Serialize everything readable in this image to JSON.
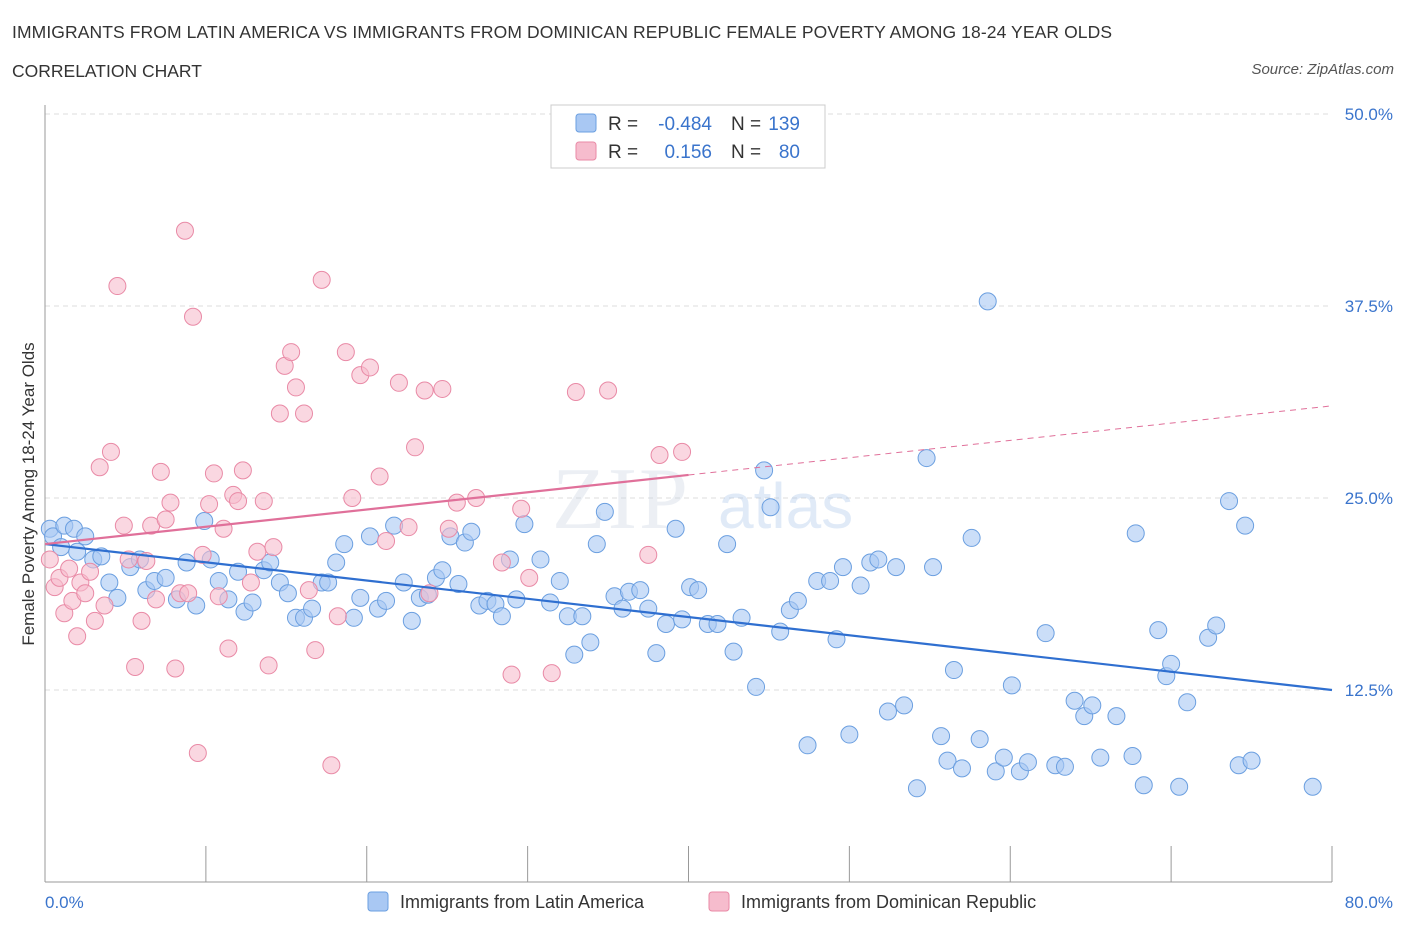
{
  "title": "IMMIGRANTS FROM LATIN AMERICA VS IMMIGRANTS FROM DOMINICAN REPUBLIC FEMALE POVERTY AMONG 18-24 YEAR OLDS",
  "subtitle": "CORRELATION CHART",
  "source": "Source: ZipAtlas.com",
  "watermark": {
    "zip": "ZIP",
    "atlas": "atlas"
  },
  "colors": {
    "blue_fill": "#a9c8f3",
    "blue_stroke": "#6b9fe0",
    "blue_line": "#2f6fd0",
    "pink_fill": "#f6bccd",
    "pink_stroke": "#e98aa6",
    "pink_line": "#e0709a",
    "axis_label_blue": "#3a74cc",
    "grid": "#dddddd"
  },
  "legend_stats": [
    {
      "r_label": "R =",
      "r_value": "-0.484",
      "n_label": "N =",
      "n_value": "139"
    },
    {
      "r_label": "R =",
      "r_value": "0.156",
      "n_label": "N =",
      "n_value": "80"
    }
  ],
  "chart_data": {
    "type": "scatter",
    "title": "IMMIGRANTS FROM LATIN AMERICA VS IMMIGRANTS FROM DOMINICAN REPUBLIC FEMALE POVERTY AMONG 18-24 YEAR OLDS",
    "xlabel": "",
    "ylabel": "Female Poverty Among 18-24 Year Olds",
    "xlim": [
      0,
      80
    ],
    "ylim": [
      0,
      50
    ],
    "x_tick_labels": [
      "0.0%",
      "80.0%"
    ],
    "y_tick_labels": [
      "12.5%",
      "25.0%",
      "37.5%",
      "50.0%"
    ],
    "y_ticks": [
      12.5,
      25.0,
      37.5,
      50.0
    ],
    "legend": [
      "Immigrants from Latin America",
      "Immigrants from Dominican Republic"
    ],
    "series": [
      {
        "name": "Immigrants from Latin America",
        "color": "#a9c8f3",
        "trend": {
          "x": [
            0,
            80
          ],
          "y": [
            22.0,
            12.5
          ],
          "style": "solid"
        },
        "points": [
          [
            0.3,
            23.0
          ],
          [
            0.5,
            22.5
          ],
          [
            1.0,
            21.8
          ],
          [
            1.2,
            23.2
          ],
          [
            1.8,
            23.0
          ],
          [
            2.0,
            21.5
          ],
          [
            2.5,
            22.5
          ],
          [
            3.0,
            21.0
          ],
          [
            3.5,
            21.2
          ],
          [
            4.0,
            19.5
          ],
          [
            4.5,
            18.5
          ],
          [
            5.3,
            20.5
          ],
          [
            5.9,
            21.0
          ],
          [
            6.3,
            19.0
          ],
          [
            6.8,
            19.6
          ],
          [
            7.5,
            19.8
          ],
          [
            8.2,
            18.4
          ],
          [
            8.8,
            20.8
          ],
          [
            9.4,
            18.0
          ],
          [
            9.9,
            23.5
          ],
          [
            10.3,
            21.0
          ],
          [
            10.8,
            19.6
          ],
          [
            11.4,
            18.4
          ],
          [
            12.0,
            20.2
          ],
          [
            12.4,
            17.6
          ],
          [
            12.9,
            18.2
          ],
          [
            13.6,
            20.3
          ],
          [
            14.0,
            20.8
          ],
          [
            14.6,
            19.5
          ],
          [
            15.1,
            18.8
          ],
          [
            15.6,
            17.2
          ],
          [
            16.1,
            17.2
          ],
          [
            16.6,
            17.8
          ],
          [
            17.2,
            19.5
          ],
          [
            17.6,
            19.5
          ],
          [
            18.1,
            20.8
          ],
          [
            18.6,
            22.0
          ],
          [
            19.2,
            17.2
          ],
          [
            19.6,
            18.5
          ],
          [
            20.2,
            22.5
          ],
          [
            20.7,
            17.8
          ],
          [
            21.2,
            18.3
          ],
          [
            21.7,
            23.2
          ],
          [
            22.3,
            19.5
          ],
          [
            22.8,
            17.0
          ],
          [
            23.3,
            18.5
          ],
          [
            23.8,
            18.7
          ],
          [
            24.3,
            19.8
          ],
          [
            24.7,
            20.3
          ],
          [
            25.2,
            22.5
          ],
          [
            25.7,
            19.4
          ],
          [
            26.1,
            22.1
          ],
          [
            26.5,
            22.8
          ],
          [
            27.0,
            18.0
          ],
          [
            27.5,
            18.3
          ],
          [
            28.0,
            18.1
          ],
          [
            28.4,
            17.3
          ],
          [
            28.9,
            21.0
          ],
          [
            29.3,
            18.4
          ],
          [
            29.8,
            23.3
          ],
          [
            30.8,
            21.0
          ],
          [
            31.4,
            18.2
          ],
          [
            32.0,
            19.6
          ],
          [
            32.5,
            17.3
          ],
          [
            32.9,
            14.8
          ],
          [
            33.4,
            17.3
          ],
          [
            33.9,
            15.6
          ],
          [
            34.3,
            22.0
          ],
          [
            34.8,
            24.1
          ],
          [
            35.4,
            18.6
          ],
          [
            35.9,
            17.8
          ],
          [
            36.3,
            18.9
          ],
          [
            37.0,
            19.0
          ],
          [
            37.5,
            17.8
          ],
          [
            38.0,
            14.9
          ],
          [
            38.6,
            16.8
          ],
          [
            39.2,
            23.0
          ],
          [
            39.6,
            17.1
          ],
          [
            40.1,
            19.2
          ],
          [
            40.6,
            19.0
          ],
          [
            41.2,
            16.8
          ],
          [
            41.8,
            16.8
          ],
          [
            42.4,
            22.0
          ],
          [
            42.8,
            15.0
          ],
          [
            43.3,
            17.2
          ],
          [
            44.2,
            12.7
          ],
          [
            44.7,
            26.8
          ],
          [
            45.1,
            24.4
          ],
          [
            45.7,
            16.3
          ],
          [
            46.3,
            17.7
          ],
          [
            46.8,
            18.3
          ],
          [
            47.4,
            8.9
          ],
          [
            48.0,
            19.6
          ],
          [
            48.8,
            19.6
          ],
          [
            49.2,
            15.8
          ],
          [
            49.6,
            20.5
          ],
          [
            50.0,
            9.6
          ],
          [
            50.7,
            19.3
          ],
          [
            51.3,
            20.8
          ],
          [
            51.8,
            21.0
          ],
          [
            52.4,
            11.1
          ],
          [
            52.9,
            20.5
          ],
          [
            53.4,
            11.5
          ],
          [
            54.2,
            6.1
          ],
          [
            54.8,
            27.6
          ],
          [
            55.2,
            20.5
          ],
          [
            55.7,
            9.5
          ],
          [
            56.1,
            7.9
          ],
          [
            56.5,
            13.8
          ],
          [
            57.0,
            7.4
          ],
          [
            57.6,
            22.4
          ],
          [
            58.1,
            9.3
          ],
          [
            58.6,
            37.8
          ],
          [
            59.1,
            7.2
          ],
          [
            59.6,
            8.1
          ],
          [
            60.1,
            12.8
          ],
          [
            60.6,
            7.2
          ],
          [
            61.1,
            7.8
          ],
          [
            62.2,
            16.2
          ],
          [
            62.8,
            7.6
          ],
          [
            63.4,
            7.5
          ],
          [
            64.0,
            11.8
          ],
          [
            64.6,
            10.8
          ],
          [
            65.1,
            11.5
          ],
          [
            65.6,
            8.1
          ],
          [
            66.6,
            10.8
          ],
          [
            67.6,
            8.2
          ],
          [
            67.8,
            22.7
          ],
          [
            68.3,
            6.3
          ],
          [
            69.2,
            16.4
          ],
          [
            69.7,
            13.4
          ],
          [
            70.0,
            14.2
          ],
          [
            70.5,
            6.2
          ],
          [
            71.0,
            11.7
          ],
          [
            72.3,
            15.9
          ],
          [
            72.8,
            16.7
          ],
          [
            73.6,
            24.8
          ],
          [
            74.2,
            7.6
          ],
          [
            74.6,
            23.2
          ],
          [
            75.0,
            7.9
          ],
          [
            78.8,
            6.2
          ]
        ]
      },
      {
        "name": "Immigrants from Dominican Republic",
        "color": "#f6bccd",
        "trend": {
          "x": [
            0,
            40
          ],
          "y": [
            22.0,
            26.5
          ],
          "style": "solid",
          "extension": {
            "x": [
              40,
              80
            ],
            "y": [
              26.5,
              31.0
            ],
            "style": "dashed"
          }
        },
        "points": [
          [
            0.3,
            21.0
          ],
          [
            0.6,
            19.2
          ],
          [
            0.9,
            19.8
          ],
          [
            1.2,
            17.5
          ],
          [
            1.5,
            20.4
          ],
          [
            1.7,
            18.3
          ],
          [
            2.0,
            16.0
          ],
          [
            2.2,
            19.5
          ],
          [
            2.5,
            18.8
          ],
          [
            2.8,
            20.2
          ],
          [
            3.1,
            17.0
          ],
          [
            3.4,
            27.0
          ],
          [
            3.7,
            18.0
          ],
          [
            4.1,
            28.0
          ],
          [
            4.5,
            38.8
          ],
          [
            4.9,
            23.2
          ],
          [
            5.2,
            21.0
          ],
          [
            5.6,
            14.0
          ],
          [
            6.0,
            17.0
          ],
          [
            6.3,
            20.9
          ],
          [
            6.6,
            23.2
          ],
          [
            6.9,
            18.4
          ],
          [
            7.2,
            26.7
          ],
          [
            7.5,
            23.6
          ],
          [
            7.8,
            24.7
          ],
          [
            8.1,
            13.9
          ],
          [
            8.4,
            18.8
          ],
          [
            8.7,
            42.4
          ],
          [
            8.9,
            18.8
          ],
          [
            9.2,
            36.8
          ],
          [
            9.5,
            8.4
          ],
          [
            9.8,
            21.3
          ],
          [
            10.2,
            24.6
          ],
          [
            10.5,
            26.6
          ],
          [
            10.8,
            18.6
          ],
          [
            11.1,
            23.0
          ],
          [
            11.4,
            15.2
          ],
          [
            11.7,
            25.2
          ],
          [
            12.0,
            24.8
          ],
          [
            12.3,
            26.8
          ],
          [
            12.8,
            19.5
          ],
          [
            13.2,
            21.5
          ],
          [
            13.6,
            24.8
          ],
          [
            13.9,
            14.1
          ],
          [
            14.2,
            21.8
          ],
          [
            14.6,
            30.5
          ],
          [
            14.9,
            33.6
          ],
          [
            15.3,
            34.5
          ],
          [
            15.6,
            32.2
          ],
          [
            16.1,
            30.5
          ],
          [
            16.4,
            19.0
          ],
          [
            16.8,
            15.1
          ],
          [
            17.2,
            39.2
          ],
          [
            17.8,
            7.6
          ],
          [
            18.2,
            17.3
          ],
          [
            18.7,
            34.5
          ],
          [
            19.1,
            25.0
          ],
          [
            19.6,
            33.0
          ],
          [
            20.2,
            33.5
          ],
          [
            20.8,
            26.4
          ],
          [
            21.2,
            22.2
          ],
          [
            22.0,
            32.5
          ],
          [
            22.6,
            23.1
          ],
          [
            23.0,
            28.3
          ],
          [
            23.6,
            32.0
          ],
          [
            23.9,
            18.8
          ],
          [
            24.7,
            32.1
          ],
          [
            25.1,
            23.0
          ],
          [
            25.6,
            24.7
          ],
          [
            26.8,
            25.0
          ],
          [
            28.4,
            20.8
          ],
          [
            29.0,
            13.5
          ],
          [
            29.6,
            24.3
          ],
          [
            30.1,
            19.8
          ],
          [
            31.5,
            13.6
          ],
          [
            33.0,
            31.9
          ],
          [
            35.0,
            32.0
          ],
          [
            37.5,
            21.3
          ],
          [
            38.2,
            27.8
          ],
          [
            39.6,
            28.0
          ]
        ]
      }
    ]
  }
}
